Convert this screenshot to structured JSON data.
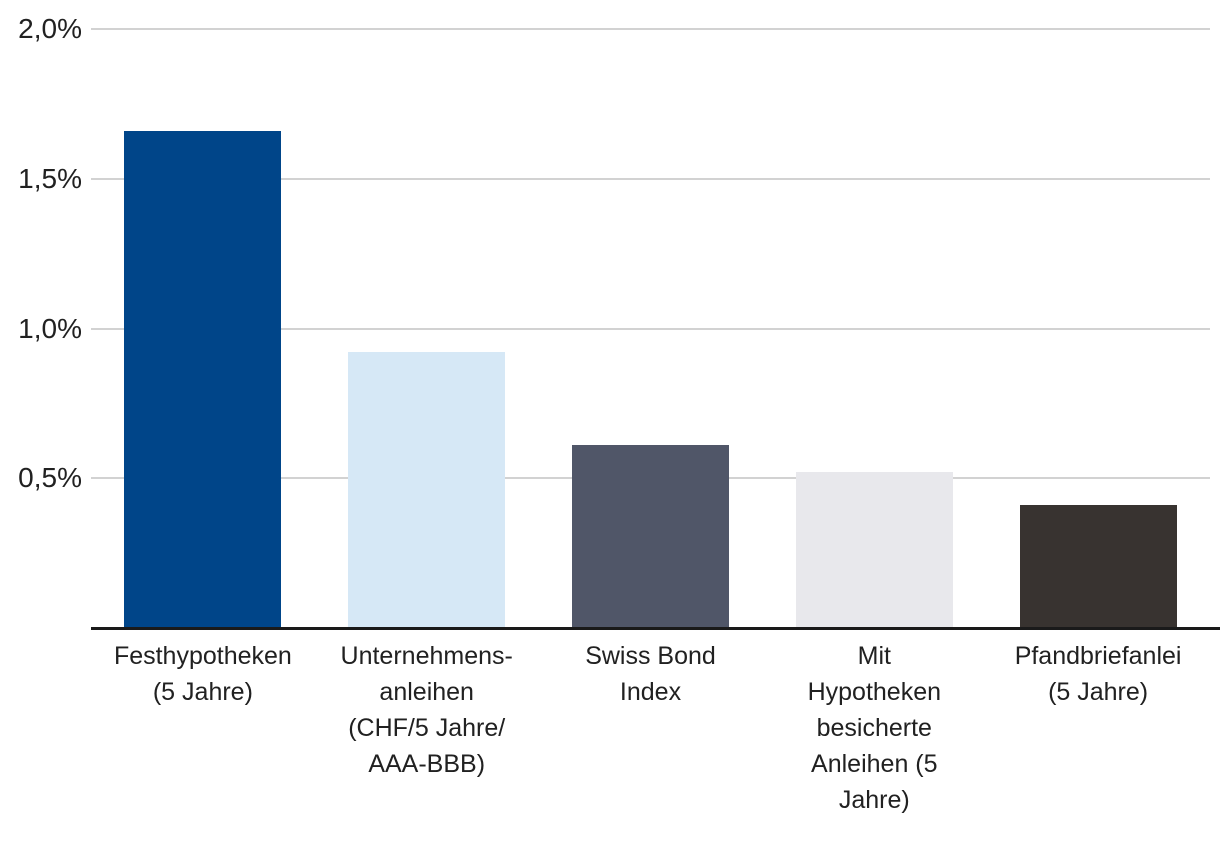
{
  "chart_data": {
    "type": "bar",
    "title": "",
    "xlabel": "",
    "ylabel": "",
    "categories": [
      "Festhypotheken\n(5 Jahre)",
      "Unternehmens-\nanleihen\n(CHF/5 Jahre/\nAAA-BBB)",
      "Swiss Bond\nIndex",
      "Mit\nHypotheken\nbesicherte\nAnleihen (5\nJahre)",
      "Pfandbriefanlei\n(5 Jahre)"
    ],
    "values": [
      1.66,
      0.92,
      0.61,
      0.52,
      0.41
    ],
    "unit": "%",
    "bar_colors": [
      "#004589",
      "#D6E8F6",
      "#505668",
      "#E8E8EC",
      "#383330"
    ],
    "ylim": [
      0,
      2.0
    ],
    "ytick_step": 0.5,
    "yticks": [
      {
        "value": 2.0,
        "label": "2,0%"
      },
      {
        "value": 1.5,
        "label": "1,5%"
      },
      {
        "value": 1.0,
        "label": "1,0%"
      },
      {
        "value": 0.5,
        "label": "0,5%"
      }
    ],
    "grid": true,
    "gridline_color": "#D2D2D2",
    "axis_line_color": "#1A1A1A",
    "text_color": "#212121",
    "background_color": "#FFFFFF",
    "legend": "none"
  }
}
